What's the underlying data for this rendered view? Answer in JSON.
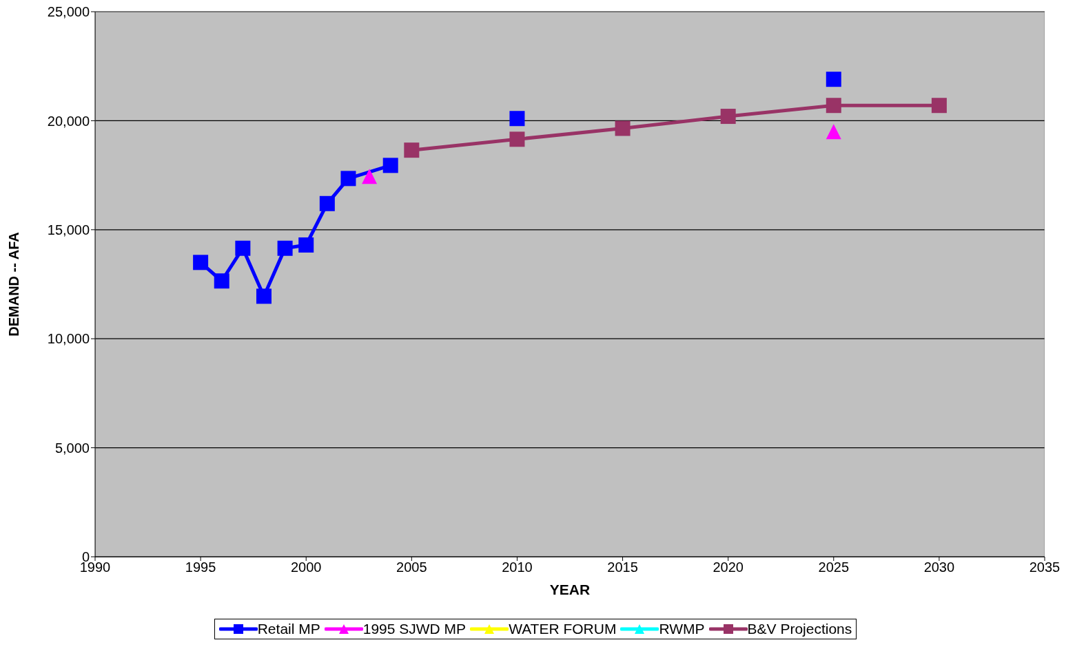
{
  "chart_data": {
    "type": "line",
    "xlabel": "YEAR",
    "ylabel": "DEMAND -- AFA",
    "xlim": [
      1990,
      2035
    ],
    "xticks": [
      1990,
      1995,
      2000,
      2005,
      2010,
      2015,
      2020,
      2025,
      2030,
      2035
    ],
    "ylim": [
      0,
      25000
    ],
    "yticks": [
      {
        "value": 0,
        "label": "0"
      },
      {
        "value": 5000,
        "label": "5,000"
      },
      {
        "value": 10000,
        "label": "10,000"
      },
      {
        "value": 15000,
        "label": "15,000"
      },
      {
        "value": 20000,
        "label": "20,000"
      },
      {
        "value": 25000,
        "label": "25,000"
      }
    ],
    "grid": "y",
    "legend": "bottom",
    "series": [
      {
        "name": "Retail MP",
        "color": "#0000ff",
        "marker": "square",
        "x": [
          1995,
          1996,
          1997,
          1998,
          1999,
          2000,
          2001,
          2002,
          2004,
          2005,
          2010,
          2015,
          2025
        ],
        "values": [
          13500,
          12650,
          14150,
          11950,
          14150,
          14300,
          16200,
          17350,
          17950,
          null,
          20100,
          null,
          21900
        ]
      },
      {
        "name": "1995 SJWD MP",
        "type": "scatter",
        "color": "#ff00ff",
        "marker": "triangle",
        "x": [
          2003,
          2025
        ],
        "values": [
          17450,
          19500
        ]
      },
      {
        "name": "WATER FORUM",
        "color": "#ffff00",
        "marker": "triangle"
      },
      {
        "name": "RWMP",
        "color": "#00ffff",
        "marker": "triangle"
      },
      {
        "name": "B&V Projections",
        "color": "#993366",
        "marker": "square",
        "x": [
          2005,
          2010,
          2015,
          2020,
          2025,
          2030
        ],
        "values": [
          18650,
          19150,
          19650,
          20200,
          20700,
          20700
        ]
      }
    ]
  }
}
